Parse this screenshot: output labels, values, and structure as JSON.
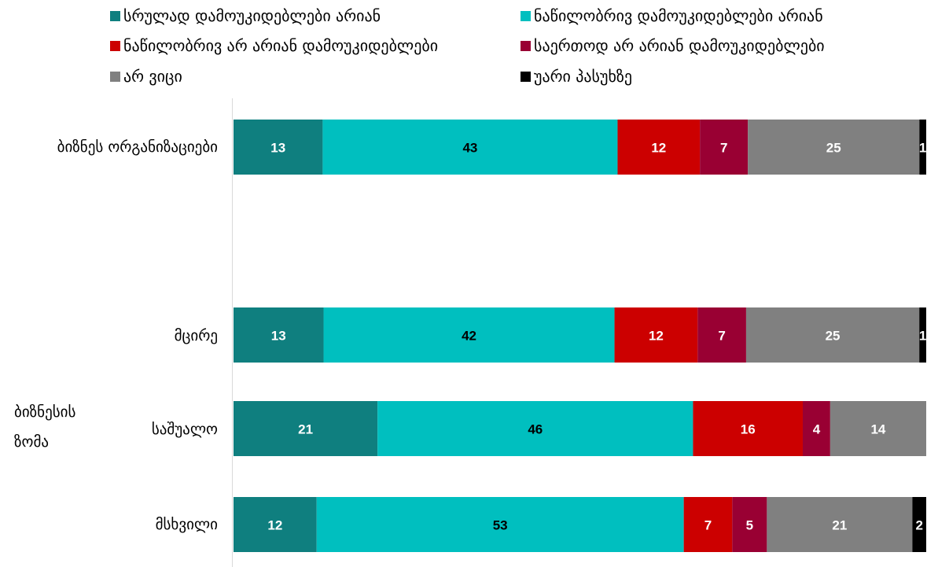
{
  "chart_data": {
    "type": "bar",
    "orientation": "horizontal",
    "stacking": "100%",
    "legend": "top",
    "grid": false,
    "data_labels": true,
    "categories": [
      "ბიზნეს ორგანიზაციები",
      "მცირე",
      "საშუალო",
      "მსხვილი"
    ],
    "category_groups": [
      {
        "label": "ბიზნესის ზომა",
        "category_indices": [
          1,
          2,
          3
        ]
      }
    ],
    "series": [
      {
        "name": "სრულად დამოუკიდებლები არიან",
        "color": "#0F7F7F",
        "label_color": "#FFFFFF",
        "values": [
          13,
          13,
          21,
          12
        ]
      },
      {
        "name": "ნაწილობრივ დამოუკიდებლები არიან",
        "color": "#00BFBF",
        "label_color": "#000000",
        "values": [
          43,
          42,
          46,
          53
        ]
      },
      {
        "name": "ნაწილობრივ არ არიან დამოუკიდებლები",
        "color": "#CC0000",
        "label_color": "#FFFFFF",
        "values": [
          12,
          12,
          16,
          7
        ]
      },
      {
        "name": "საერთოდ არ არიან დამოუკიდებლები",
        "color": "#990033",
        "label_color": "#FFFFFF",
        "values": [
          7,
          7,
          4,
          5
        ]
      },
      {
        "name": "არ ვიცი",
        "color": "#808080",
        "label_color": "#FFFFFF",
        "values": [
          25,
          25,
          14,
          21
        ]
      },
      {
        "name": "უარი პასუხზე",
        "color": "#000000",
        "label_color": "#FFFFFF",
        "values": [
          1,
          1,
          null,
          2
        ]
      }
    ]
  }
}
